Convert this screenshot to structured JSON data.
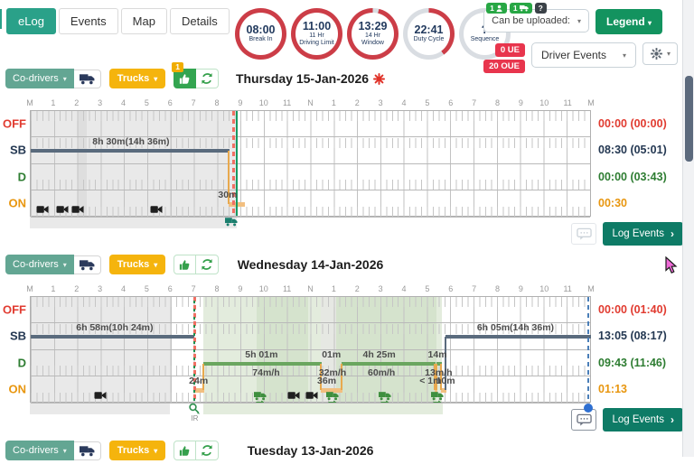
{
  "tabs": [
    {
      "label": "eLog",
      "active": true
    },
    {
      "label": "Events",
      "active": false
    },
    {
      "label": "Map",
      "active": false
    },
    {
      "label": "Details",
      "active": false
    }
  ],
  "gauges": [
    {
      "value": "08:00",
      "lines": [
        "Break In"
      ],
      "arc": [
        0,
        360
      ]
    },
    {
      "value": "11:00",
      "lines": [
        "11 Hr",
        "Driving Limit"
      ],
      "arc": [
        0,
        360
      ]
    },
    {
      "value": "13:29",
      "lines": [
        "14 Hr",
        "Window"
      ],
      "arc": [
        14,
        360
      ]
    },
    {
      "value": "22:41",
      "lines": [
        "Duty Cycle"
      ],
      "arc": [
        0,
        144
      ]
    },
    {
      "value": "?",
      "lines": [
        "Sequence"
      ],
      "arc": [
        0,
        0
      ]
    }
  ],
  "top_right": {
    "mini_badges": [
      {
        "text": "1",
        "icon": "person",
        "bg": "#28a745"
      },
      {
        "text": "1",
        "icon": "truck",
        "bg": "#28a745"
      },
      {
        "text": "?",
        "icon": "",
        "bg": "#3b4248"
      }
    ],
    "upload_label": "Can be uploaded:",
    "legend_label": "Legend",
    "ue_badge": "0 UE",
    "oue_badge": "20 OUE",
    "events_label": "Driver Events"
  },
  "toolbar": {
    "codrivers_label": "Co-drivers",
    "trucks_label": "Trucks"
  },
  "footer": {
    "log_events_label": "Log Events"
  },
  "axis": [
    "M",
    "1",
    "2",
    "3",
    "4",
    "5",
    "6",
    "7",
    "8",
    "9",
    "10",
    "11",
    "N",
    "1",
    "2",
    "3",
    "4",
    "5",
    "6",
    "7",
    "8",
    "9",
    "10",
    "11",
    "M"
  ],
  "rows": [
    {
      "key": "OFF",
      "color": "#e13b30"
    },
    {
      "key": "SB",
      "color": "#243852"
    },
    {
      "key": "D",
      "color": "#2e7d32"
    },
    {
      "key": "ON",
      "color": "#e8960f"
    }
  ],
  "colors": {
    "accent_teal": "#2aa189",
    "legend_green": "#13935f",
    "log_events_teal": "#0e7b66",
    "trucks_amber": "#f5b40d",
    "codrivers_teal": "#63a693",
    "danger_red": "#e8354d",
    "ring_red": "#cc3d47",
    "ring_gray": "#d9dde2",
    "sb_line": "#5a6b7d",
    "d_line": "#6aa65f",
    "on_line": "#f2bf80",
    "now_red": "#f07063",
    "now_green": "#159a62",
    "midnight_blue": "#4b7fb8"
  },
  "chart_data": [
    {
      "type": "hos-log",
      "title": "Thursday 15-Jan-2026",
      "flagged": true,
      "thumb_badge": "1",
      "totals": [
        "00:00 (00:00)",
        "08:30 (05:01)",
        "00:00 (03:43)",
        "00:30"
      ],
      "shades": [
        {
          "from": 0,
          "to": 8.85,
          "color": "#e9e9e9"
        },
        {
          "from": 2.0,
          "to": 2.4,
          "color": "#dedede"
        }
      ],
      "strip_shades": [
        {
          "from": 0,
          "to": 8.85,
          "color": "#e9e9e9"
        }
      ],
      "duty": [
        {
          "row": "SB",
          "from": 0,
          "to": 8.5
        },
        {
          "row": "ON",
          "from": 8.5,
          "to": 9.15
        }
      ],
      "connectors": [
        {
          "at": 8.5,
          "a": "SB",
          "b": "ON",
          "color": "#e8a94e"
        }
      ],
      "labels": [
        {
          "text": "8h 30m(14h 36m)",
          "at": 4.3,
          "row": "SB",
          "pos": "above"
        },
        {
          "text": "30m",
          "at": 8.45,
          "row": "ON",
          "pos": "above"
        }
      ],
      "vlines": [
        {
          "at": 8.67,
          "kind": "red"
        },
        {
          "at": 8.85,
          "kind": "green"
        }
      ],
      "icons": [
        {
          "kind": "camera",
          "at": 0.5
        },
        {
          "kind": "camera",
          "at": 1.35
        },
        {
          "kind": "camera",
          "at": 2.0
        },
        {
          "kind": "camera",
          "at": 5.4
        },
        {
          "kind": "truck-teal",
          "at": 8.6,
          "below": true
        }
      ]
    },
    {
      "type": "hos-log",
      "title": "Wednesday 14-Jan-2026",
      "flagged": false,
      "thumb_badge": null,
      "totals": [
        "00:00 (01:40)",
        "13:05 (08:17)",
        "09:43 (11:46)",
        "01:13"
      ],
      "shades": [
        {
          "from": 0,
          "to": 6.0,
          "color": "#e9e9e9"
        },
        {
          "from": 7.42,
          "to": 17.65,
          "color": "#e3ecdd"
        },
        {
          "from": 9.7,
          "to": 11.9,
          "color": "#d5e3cd"
        },
        {
          "from": 12.43,
          "to": 13.1,
          "color": "#e6e8e3"
        },
        {
          "from": 13.1,
          "to": 17.4,
          "color": "#d5e3cd"
        }
      ],
      "strip_shades": [
        {
          "from": 0,
          "to": 6.0,
          "color": "#e9e9e9"
        },
        {
          "from": 7.42,
          "to": 17.65,
          "color": "#e3ecdd"
        }
      ],
      "duty": [
        {
          "row": "SB",
          "from": 0,
          "to": 6.97
        },
        {
          "row": "ON",
          "from": 7.0,
          "to": 7.42
        },
        {
          "row": "D",
          "from": 7.42,
          "to": 12.43
        },
        {
          "row": "ON",
          "from": 12.43,
          "to": 13.35
        },
        {
          "row": "D",
          "from": 13.35,
          "to": 17.33
        },
        {
          "row": "ON",
          "from": 17.33,
          "to": 17.42
        },
        {
          "row": "D",
          "from": 17.42,
          "to": 17.62
        },
        {
          "row": "ON",
          "from": 17.62,
          "to": 17.8
        },
        {
          "row": "SB",
          "from": 17.8,
          "to": 24
        }
      ],
      "connectors": [
        {
          "at": 7.42,
          "a": "ON",
          "b": "D",
          "color": "#e8a94e"
        },
        {
          "at": 12.43,
          "a": "D",
          "b": "ON",
          "color": "#e8a94e"
        },
        {
          "at": 13.35,
          "a": "ON",
          "b": "D",
          "color": "#e8a94e"
        },
        {
          "at": 17.33,
          "a": "D",
          "b": "ON",
          "color": "#e8a94e"
        },
        {
          "at": 17.42,
          "a": "ON",
          "b": "D",
          "color": "#e8a94e"
        },
        {
          "at": 17.62,
          "a": "D",
          "b": "ON",
          "color": "#e8a94e"
        },
        {
          "at": 17.8,
          "a": "ON",
          "b": "SB",
          "color": "#5a6b7d"
        }
      ],
      "labels": [
        {
          "text": "6h 58m(10h 24m)",
          "at": 3.6,
          "row": "SB",
          "pos": "above"
        },
        {
          "text": "24m",
          "at": 7.2,
          "row": "ON",
          "pos": "above"
        },
        {
          "text": "5h 01m",
          "at": 9.9,
          "row": "D",
          "pos": "above"
        },
        {
          "text": "74m/h",
          "at": 10.1,
          "row": "D",
          "pos": "below"
        },
        {
          "text": "36m",
          "at": 12.7,
          "row": "ON",
          "pos": "above"
        },
        {
          "text": "01m",
          "at": 12.9,
          "row": "D",
          "pos": "above"
        },
        {
          "text": "32m/h",
          "at": 12.95,
          "row": "D",
          "pos": "below"
        },
        {
          "text": "4h 25m",
          "at": 14.95,
          "row": "D",
          "pos": "above"
        },
        {
          "text": "60m/h",
          "at": 15.05,
          "row": "D",
          "pos": "below"
        },
        {
          "text": "< 1m",
          "at": 17.15,
          "row": "ON",
          "pos": "above"
        },
        {
          "text": "14m",
          "at": 17.45,
          "row": "D",
          "pos": "above"
        },
        {
          "text": "13m/h",
          "at": 17.5,
          "row": "D",
          "pos": "below"
        },
        {
          "text": "10m",
          "at": 17.8,
          "row": "ON",
          "pos": "above"
        },
        {
          "text": "6h 05m(14h 36m)",
          "at": 20.8,
          "row": "SB",
          "pos": "above"
        }
      ],
      "vlines": [
        {
          "at": 7.0,
          "kind": "red-green"
        },
        {
          "at": 23.93,
          "kind": "blue",
          "dot": true
        }
      ],
      "icons": [
        {
          "kind": "camera",
          "at": 3.0
        },
        {
          "kind": "truck-green",
          "at": 9.85
        },
        {
          "kind": "camera",
          "at": 11.3
        },
        {
          "kind": "camera",
          "at": 12.05
        },
        {
          "kind": "truck-green",
          "at": 12.95
        },
        {
          "kind": "truck-green",
          "at": 15.2
        },
        {
          "kind": "truck-green",
          "at": 17.45
        },
        {
          "kind": "magnifier-ir",
          "at": 7.05,
          "below": true
        }
      ]
    },
    {
      "type": "hos-log",
      "title": "Tuesday 13-Jan-2026",
      "flagged": false,
      "thumb_badge": null,
      "totals": [],
      "head_only": true
    }
  ]
}
